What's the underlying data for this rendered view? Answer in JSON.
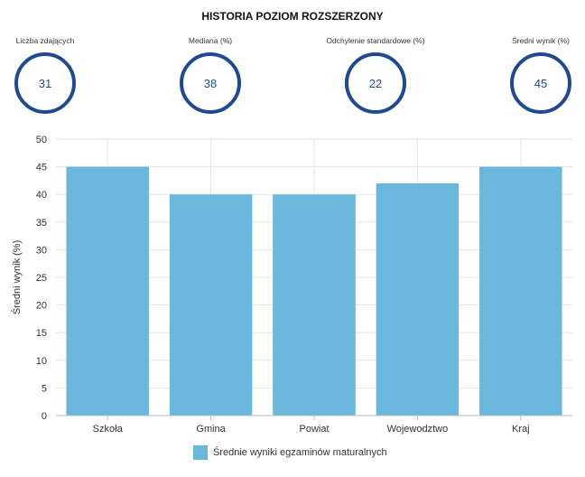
{
  "title": "HISTORIA POZIOM ROZSZERZONY",
  "stats": [
    {
      "label": "Liczba zdających",
      "value": "31"
    },
    {
      "label": "Mediana (%)",
      "value": "38"
    },
    {
      "label": "Odchylenie standardowe (%)",
      "value": "22"
    },
    {
      "label": "Średni wynik (%)",
      "value": "45"
    }
  ],
  "colors": {
    "bar": "#69b7dc",
    "ring": "#1f4a90",
    "grid": "#e3e3e3"
  },
  "chart_data": {
    "type": "bar",
    "categories": [
      "Szkoła",
      "Gmina",
      "Powiat",
      "Wojewodztwo",
      "Kraj"
    ],
    "series": [
      {
        "name": "Średnie wyniki egzaminów maturalnych",
        "values": [
          45,
          40,
          40,
          42,
          45
        ]
      }
    ],
    "ylabel": "Średni wynik (%)",
    "ylim": [
      0,
      50
    ],
    "yticks": [
      0,
      5,
      10,
      15,
      20,
      25,
      30,
      35,
      40,
      45,
      50
    ],
    "grid": true,
    "legend": "bottom"
  }
}
